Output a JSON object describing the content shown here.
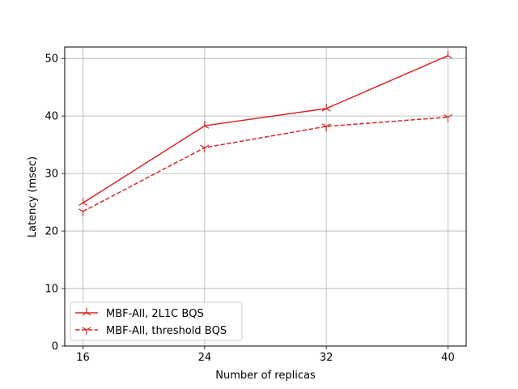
{
  "chart_data": {
    "type": "line",
    "title": "",
    "xlabel": "Number of replicas",
    "ylabel": "Latency (msec)",
    "x": [
      16,
      24,
      32,
      40
    ],
    "xticks": [
      "16",
      "24",
      "32",
      "40"
    ],
    "xlim": [
      14.8,
      41.2
    ],
    "yticks": [
      "0",
      "10",
      "20",
      "30",
      "40",
      "50"
    ],
    "ylim": [
      0,
      52
    ],
    "grid": true,
    "legend_position": "lower-left",
    "series": [
      {
        "name": "MBF-All, 2L1C BQS",
        "values": [
          24.9,
          38.3,
          41.3,
          50.5
        ],
        "color": "#d62728",
        "line_style": "solid",
        "marker": "tri-up"
      },
      {
        "name": "MBF-All, threshold BQS",
        "values": [
          23.4,
          34.5,
          38.2,
          39.8
        ],
        "color": "#d62728",
        "line_style": "dashed",
        "marker": "tri-down"
      }
    ]
  }
}
